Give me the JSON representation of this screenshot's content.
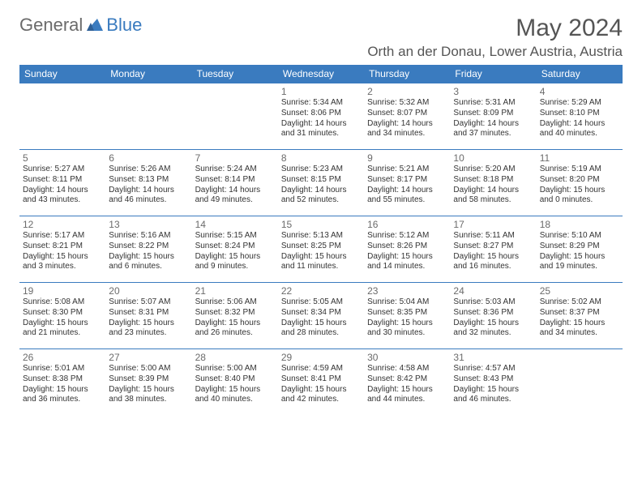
{
  "logo": {
    "general": "General",
    "blue": "Blue"
  },
  "title": "May 2024",
  "location": "Orth an der Donau, Lower Austria, Austria",
  "daynames": [
    "Sunday",
    "Monday",
    "Tuesday",
    "Wednesday",
    "Thursday",
    "Friday",
    "Saturday"
  ],
  "colors": {
    "accent": "#3a7bbf",
    "text": "#333333",
    "muted": "#6b6b6b",
    "bg": "#ffffff"
  },
  "weeks": [
    [
      null,
      null,
      null,
      {
        "n": "1",
        "sr": "5:34 AM",
        "ss": "8:06 PM",
        "dl": "14 hours and 31 minutes."
      },
      {
        "n": "2",
        "sr": "5:32 AM",
        "ss": "8:07 PM",
        "dl": "14 hours and 34 minutes."
      },
      {
        "n": "3",
        "sr": "5:31 AM",
        "ss": "8:09 PM",
        "dl": "14 hours and 37 minutes."
      },
      {
        "n": "4",
        "sr": "5:29 AM",
        "ss": "8:10 PM",
        "dl": "14 hours and 40 minutes."
      }
    ],
    [
      {
        "n": "5",
        "sr": "5:27 AM",
        "ss": "8:11 PM",
        "dl": "14 hours and 43 minutes."
      },
      {
        "n": "6",
        "sr": "5:26 AM",
        "ss": "8:13 PM",
        "dl": "14 hours and 46 minutes."
      },
      {
        "n": "7",
        "sr": "5:24 AM",
        "ss": "8:14 PM",
        "dl": "14 hours and 49 minutes."
      },
      {
        "n": "8",
        "sr": "5:23 AM",
        "ss": "8:15 PM",
        "dl": "14 hours and 52 minutes."
      },
      {
        "n": "9",
        "sr": "5:21 AM",
        "ss": "8:17 PM",
        "dl": "14 hours and 55 minutes."
      },
      {
        "n": "10",
        "sr": "5:20 AM",
        "ss": "8:18 PM",
        "dl": "14 hours and 58 minutes."
      },
      {
        "n": "11",
        "sr": "5:19 AM",
        "ss": "8:20 PM",
        "dl": "15 hours and 0 minutes."
      }
    ],
    [
      {
        "n": "12",
        "sr": "5:17 AM",
        "ss": "8:21 PM",
        "dl": "15 hours and 3 minutes."
      },
      {
        "n": "13",
        "sr": "5:16 AM",
        "ss": "8:22 PM",
        "dl": "15 hours and 6 minutes."
      },
      {
        "n": "14",
        "sr": "5:15 AM",
        "ss": "8:24 PM",
        "dl": "15 hours and 9 minutes."
      },
      {
        "n": "15",
        "sr": "5:13 AM",
        "ss": "8:25 PM",
        "dl": "15 hours and 11 minutes."
      },
      {
        "n": "16",
        "sr": "5:12 AM",
        "ss": "8:26 PM",
        "dl": "15 hours and 14 minutes."
      },
      {
        "n": "17",
        "sr": "5:11 AM",
        "ss": "8:27 PM",
        "dl": "15 hours and 16 minutes."
      },
      {
        "n": "18",
        "sr": "5:10 AM",
        "ss": "8:29 PM",
        "dl": "15 hours and 19 minutes."
      }
    ],
    [
      {
        "n": "19",
        "sr": "5:08 AM",
        "ss": "8:30 PM",
        "dl": "15 hours and 21 minutes."
      },
      {
        "n": "20",
        "sr": "5:07 AM",
        "ss": "8:31 PM",
        "dl": "15 hours and 23 minutes."
      },
      {
        "n": "21",
        "sr": "5:06 AM",
        "ss": "8:32 PM",
        "dl": "15 hours and 26 minutes."
      },
      {
        "n": "22",
        "sr": "5:05 AM",
        "ss": "8:34 PM",
        "dl": "15 hours and 28 minutes."
      },
      {
        "n": "23",
        "sr": "5:04 AM",
        "ss": "8:35 PM",
        "dl": "15 hours and 30 minutes."
      },
      {
        "n": "24",
        "sr": "5:03 AM",
        "ss": "8:36 PM",
        "dl": "15 hours and 32 minutes."
      },
      {
        "n": "25",
        "sr": "5:02 AM",
        "ss": "8:37 PM",
        "dl": "15 hours and 34 minutes."
      }
    ],
    [
      {
        "n": "26",
        "sr": "5:01 AM",
        "ss": "8:38 PM",
        "dl": "15 hours and 36 minutes."
      },
      {
        "n": "27",
        "sr": "5:00 AM",
        "ss": "8:39 PM",
        "dl": "15 hours and 38 minutes."
      },
      {
        "n": "28",
        "sr": "5:00 AM",
        "ss": "8:40 PM",
        "dl": "15 hours and 40 minutes."
      },
      {
        "n": "29",
        "sr": "4:59 AM",
        "ss": "8:41 PM",
        "dl": "15 hours and 42 minutes."
      },
      {
        "n": "30",
        "sr": "4:58 AM",
        "ss": "8:42 PM",
        "dl": "15 hours and 44 minutes."
      },
      {
        "n": "31",
        "sr": "4:57 AM",
        "ss": "8:43 PM",
        "dl": "15 hours and 46 minutes."
      },
      null
    ]
  ],
  "labels": {
    "sunrise": "Sunrise:",
    "sunset": "Sunset:",
    "daylight": "Daylight:"
  }
}
